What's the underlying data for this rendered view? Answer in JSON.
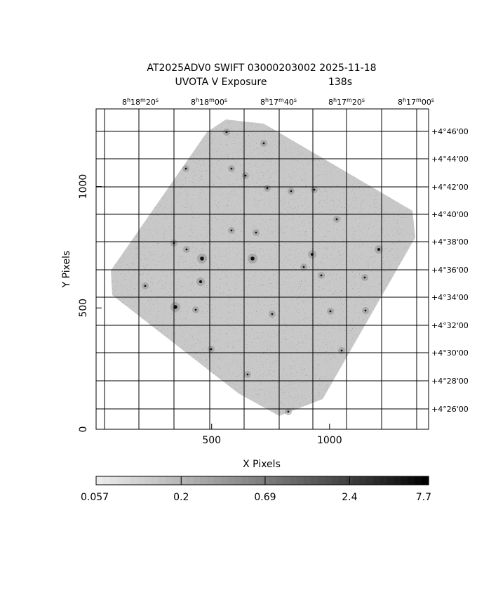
{
  "chart_data": {
    "type": "heatmap",
    "title": "AT2025ADV0 SWIFT 03000203002 2025-11-18",
    "subtitle_left": "UVOTA V Exposure",
    "subtitle_right": "138s",
    "xlabel": "X Pixels",
    "ylabel": "Y Pixels",
    "xlim": [
      10,
      1420
    ],
    "ylim": [
      0,
      1320
    ],
    "x_ticks": [
      {
        "value": 500,
        "label": "500"
      },
      {
        "value": 1000,
        "label": "1000"
      }
    ],
    "y_ticks": [
      {
        "value": 0,
        "label": "0"
      },
      {
        "value": 500,
        "label": "500"
      },
      {
        "value": 1000,
        "label": "1000"
      }
    ],
    "ra_ticks": [
      "8h18m20s",
      "8h18m00s",
      "8h17m40s",
      "8h17m20s",
      "8h17m00s"
    ],
    "ra_labels": [
      {
        "h": "8",
        "m": "18",
        "s": "20"
      },
      {
        "h": "8",
        "m": "18",
        "s": "00"
      },
      {
        "h": "8",
        "m": "17",
        "s": "40"
      },
      {
        "h": "8",
        "m": "17",
        "s": "20"
      },
      {
        "h": "8",
        "m": "17",
        "s": "00"
      }
    ],
    "dec_labels": [
      "+4°46'00",
      "+4°44'00",
      "+4°42'00",
      "+4°40'00",
      "+4°38'00",
      "+4°36'00",
      "+4°34'00",
      "+4°32'00",
      "+4°30'00",
      "+4°28'00",
      "+4°26'00"
    ],
    "grid": true,
    "colorbar": {
      "scale": "log",
      "range": [
        0.057,
        7.7
      ],
      "tick_labels": [
        "0.057",
        "0.2",
        "0.69",
        "2.4",
        "7.7"
      ],
      "colormap": "gray_reversed"
    }
  }
}
